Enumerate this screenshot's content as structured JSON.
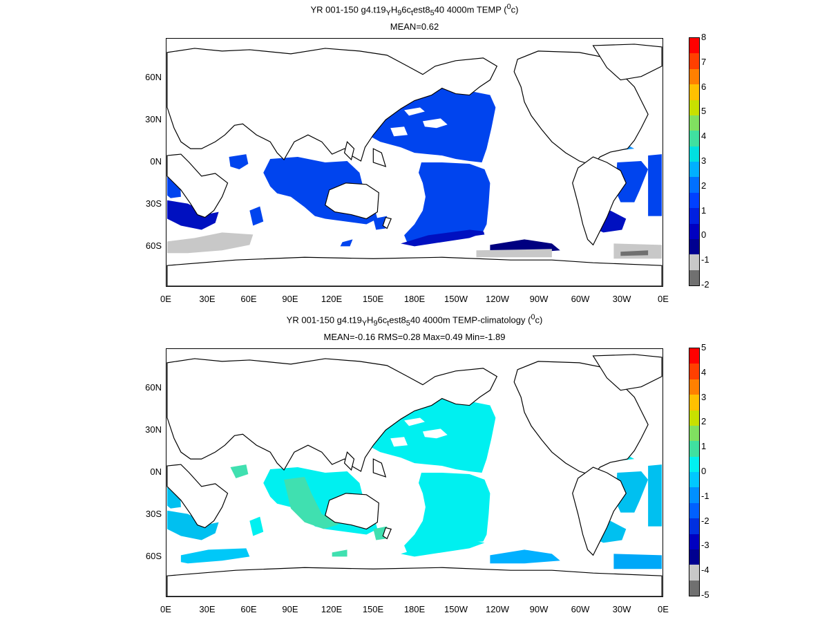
{
  "panels": [
    {
      "title_parts": {
        "pre": "YR 001-150 g4.t19",
        "s1": "Y",
        "mid1": "H",
        "s2": "9",
        "mid2": "6c",
        "s3": "t",
        "mid3": "est8",
        "s4": "5",
        "post": "40 4000m TEMP (",
        "sup": "0",
        "end": "c)"
      },
      "subtitle": "MEAN=0.62",
      "colorbar": {
        "labels": [
          "8",
          "7",
          "6",
          "5",
          "4",
          "3",
          "2",
          "1",
          "0",
          "-1",
          "-2"
        ],
        "colors": [
          "#ff0000",
          "#ff4000",
          "#ff8000",
          "#ffc000",
          "#c8e000",
          "#80e060",
          "#40e0a0",
          "#00e0e0",
          "#00b0ff",
          "#0070ff",
          "#0040ff",
          "#0020e0",
          "#0000c0",
          "#000090",
          "#c8c8c8",
          "#707070"
        ]
      },
      "fill_colors": {
        "main": "#0044ee",
        "dark": "#0010c0",
        "navy": "#000080",
        "light": "#1a96ff",
        "gray": "#c8c8c8",
        "darkgray": "#707070"
      }
    },
    {
      "title_parts": {
        "pre": "YR 001-150 g4.t19",
        "s1": "Y",
        "mid1": "H",
        "s2": "9",
        "mid2": "6c",
        "s3": "t",
        "mid3": "est8",
        "s4": "5",
        "post": "40 4000m TEMP-climatology (",
        "sup": "0",
        "end": "c)"
      },
      "subtitle": "MEAN=-0.16   RMS=0.28   Max=0.49   Min=-1.89",
      "colorbar": {
        "labels": [
          "5",
          "4",
          "3",
          "2",
          "1",
          "0",
          "-1",
          "-2",
          "-3",
          "-4",
          "-5"
        ],
        "colors": [
          "#ff0000",
          "#ff4000",
          "#ff8000",
          "#ffc000",
          "#c8e000",
          "#80e060",
          "#40e0a0",
          "#00f0f0",
          "#00c8ff",
          "#0090ff",
          "#0060ff",
          "#0030e0",
          "#0000c0",
          "#000090",
          "#c8c8c8",
          "#707070"
        ]
      },
      "fill_colors": {
        "main": "#00f0f0",
        "dark": "#00c0f0",
        "navy": "#00b0ff",
        "light": "#00e8f0",
        "gray": "#00c8f8",
        "darkgray": "#00a8f8",
        "green": "#40e0b0"
      }
    }
  ],
  "x_ticks": [
    "0E",
    "30E",
    "60E",
    "90E",
    "120E",
    "150E",
    "180E",
    "150W",
    "120W",
    "90W",
    "60W",
    "30W",
    "0E"
  ],
  "y_ticks": [
    "60N",
    "30N",
    "0N",
    "30S",
    "60S"
  ]
}
